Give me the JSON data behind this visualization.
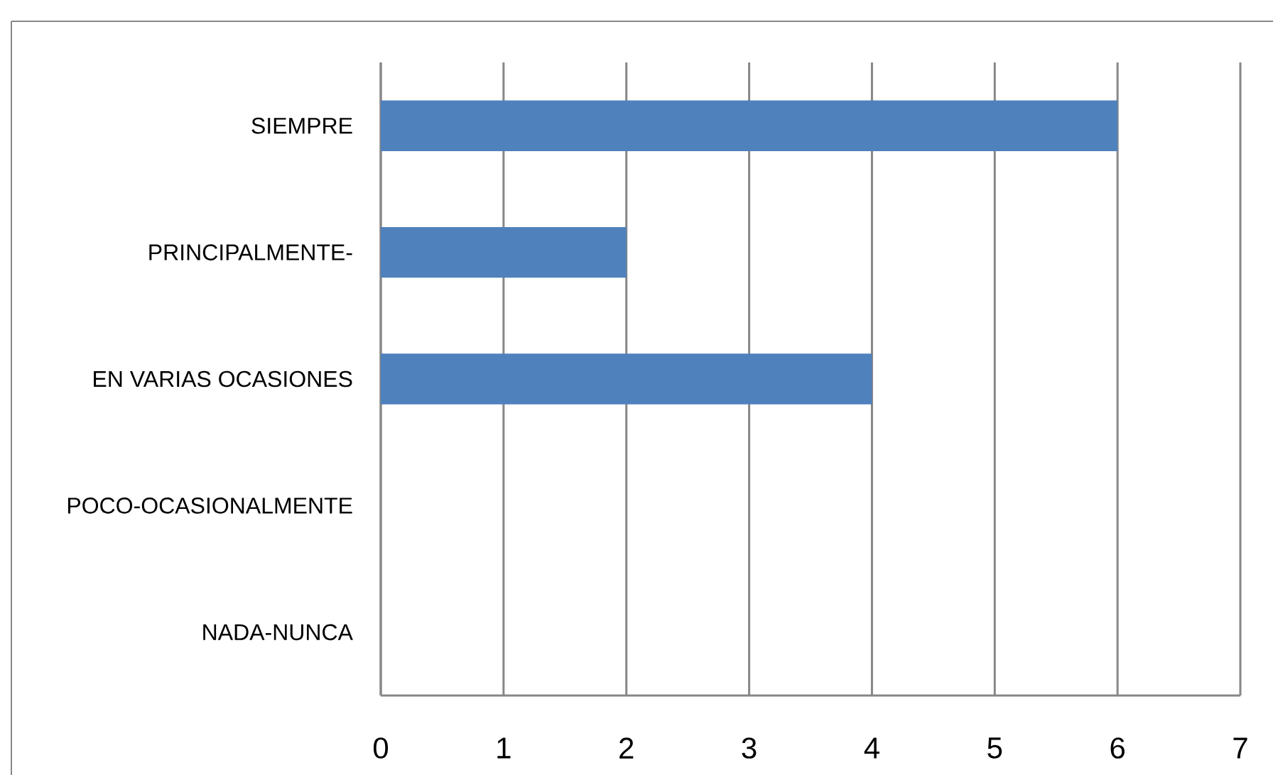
{
  "chart_data": {
    "type": "bar",
    "orientation": "horizontal",
    "categories": [
      "SIEMPRE",
      "PRINCIPALMENTE-",
      "EN VARIAS OCASIONES",
      "POCO-OCASIONALMENTE",
      "NADA-NUNCA"
    ],
    "values": [
      6,
      2,
      4,
      0,
      0
    ],
    "color": "#4f81bd",
    "xlim": [
      0,
      7
    ],
    "xticks": [
      0,
      1,
      2,
      3,
      4,
      5,
      6,
      7
    ],
    "grid": "x"
  }
}
